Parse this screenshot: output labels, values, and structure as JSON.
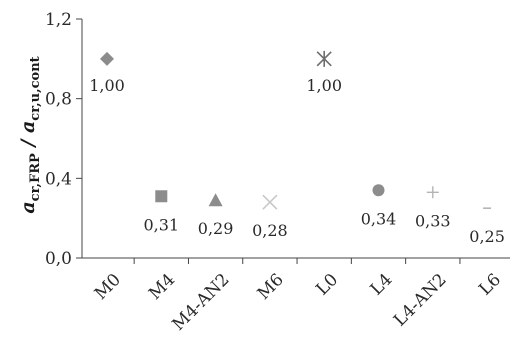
{
  "chart_data": {
    "type": "scatter",
    "title": "",
    "ylabel": {
      "main_a": "a",
      "sub_a": "cr,FRP",
      "slash": " / ",
      "main_b": "a",
      "sub_b": "cr,u,cont"
    },
    "ylim": [
      0,
      1.2
    ],
    "yticks": [
      "0,0",
      "0,4",
      "0,8",
      "1,2"
    ],
    "ytick_values": [
      0,
      0.4,
      0.8,
      1.2
    ],
    "categories": [
      "M0",
      "M4",
      "M4-AN2",
      "M6",
      "L0",
      "L4",
      "L4-AN2",
      "L6"
    ],
    "points": [
      {
        "category": "M0",
        "value": 1.0,
        "label": "1,00",
        "marker": "diamond",
        "color": "#8c8c8c"
      },
      {
        "category": "M4",
        "value": 0.31,
        "label": "0,31",
        "marker": "square",
        "color": "#8c8c8c"
      },
      {
        "category": "M4-AN2",
        "value": 0.29,
        "label": "0,29",
        "marker": "triangle",
        "color": "#8c8c8c"
      },
      {
        "category": "M6",
        "value": 0.28,
        "label": "0,28",
        "marker": "x",
        "color": "#c8c8c8"
      },
      {
        "category": "L0",
        "value": 1.0,
        "label": "1,00",
        "marker": "asterisk",
        "color": "#6e6e6e"
      },
      {
        "category": "L4",
        "value": 0.34,
        "label": "0,34",
        "marker": "circle",
        "color": "#8c8c8c"
      },
      {
        "category": "L4-AN2",
        "value": 0.33,
        "label": "0,33",
        "marker": "plus",
        "color": "#b4b4b4"
      },
      {
        "category": "L6",
        "value": 0.25,
        "label": "0,25",
        "marker": "dash",
        "color": "#b4b4b4"
      }
    ],
    "grid": false,
    "legend": "none"
  }
}
